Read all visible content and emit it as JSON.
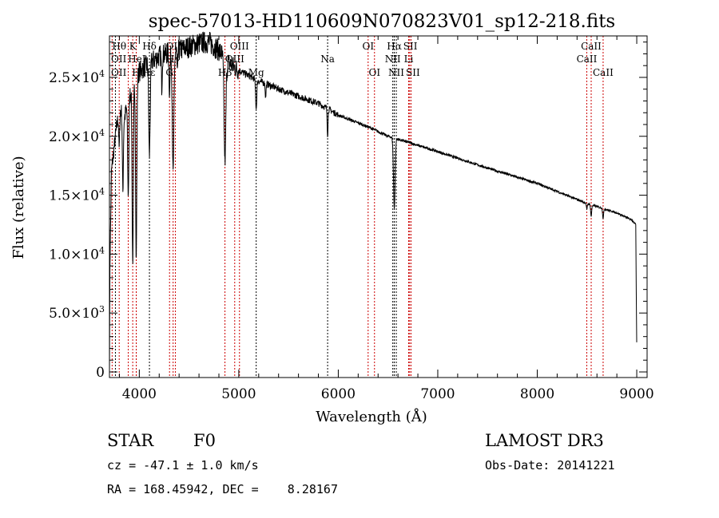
{
  "chart_data": {
    "type": "line",
    "title": "spec-57013-HD110609N070823V01_sp12-218.fits",
    "xlabel": "Wavelength (Å)",
    "ylabel": "Flux (relative)",
    "xlim": [
      3700,
      9104
    ],
    "ylim": [
      -475,
      28520
    ],
    "xticks": [
      4000,
      5000,
      6000,
      7000,
      8000,
      9000
    ],
    "xtick_labels": [
      "4000",
      "5000",
      "6000",
      "7000",
      "8000",
      "9000"
    ],
    "yticks": [
      0,
      5000,
      10000,
      15000,
      20000,
      25000
    ],
    "ytick_labels": [
      [
        "0",
        ""
      ],
      [
        "5.0×10",
        "3"
      ],
      [
        "1.0×10",
        "4"
      ],
      [
        "1.5×10",
        "4"
      ],
      [
        "2.0×10",
        "4"
      ],
      [
        "2.5×10",
        "4"
      ]
    ],
    "grid": false,
    "continuum": [
      [
        3700,
        0
      ],
      [
        3705,
        9000
      ],
      [
        3720,
        17000
      ],
      [
        3760,
        20000
      ],
      [
        3800,
        22500
      ],
      [
        3850,
        21500
      ],
      [
        3900,
        23500
      ],
      [
        4000,
        25500
      ],
      [
        4100,
        26200
      ],
      [
        4200,
        26800
      ],
      [
        4300,
        27100
      ],
      [
        4400,
        27300
      ],
      [
        4500,
        27600
      ],
      [
        4600,
        27900
      ],
      [
        4700,
        28000
      ],
      [
        4800,
        27300
      ],
      [
        4900,
        26200
      ],
      [
        5000,
        25600
      ],
      [
        5200,
        24700
      ],
      [
        5500,
        23700
      ],
      [
        5800,
        22800
      ],
      [
        6000,
        21800
      ],
      [
        6300,
        20800
      ],
      [
        6500,
        20000
      ],
      [
        6700,
        19500
      ],
      [
        7000,
        18700
      ],
      [
        7500,
        17300
      ],
      [
        8000,
        16000
      ],
      [
        8500,
        14300
      ],
      [
        8800,
        13500
      ],
      [
        8950,
        12900
      ],
      [
        8990,
        12500
      ],
      [
        8995,
        7000
      ],
      [
        9000,
        2500
      ]
    ],
    "absorption": [
      [
        3798,
        0.15,
        5
      ],
      [
        3835,
        0.3,
        5
      ],
      [
        3889,
        0.35,
        6
      ],
      [
        3934,
        0.62,
        6
      ],
      [
        3969,
        0.62,
        6
      ],
      [
        4102,
        0.3,
        7
      ],
      [
        4226,
        0.1,
        4
      ],
      [
        4304,
        0.12,
        5
      ],
      [
        4340,
        0.38,
        8
      ],
      [
        4383,
        0.08,
        4
      ],
      [
        4861,
        0.33,
        9
      ],
      [
        5175,
        0.1,
        6
      ],
      [
        5270,
        0.05,
        4
      ],
      [
        5893,
        0.1,
        4
      ],
      [
        6563,
        0.3,
        8
      ],
      [
        8498,
        0.04,
        4
      ],
      [
        8542,
        0.07,
        5
      ],
      [
        8662,
        0.06,
        5
      ]
    ],
    "lines": [
      {
        "w": 3727,
        "label": "OII",
        "row": 2,
        "color": "#cc0000"
      },
      {
        "w": 3798,
        "label": "Hθ",
        "row": 0,
        "color": "#cc0000"
      },
      {
        "w": 3760,
        "label": "OII",
        "row": 1,
        "color": "#000000"
      },
      {
        "w": 3889,
        "label": "HeI",
        "row": 1,
        "color": "#cc0000"
      },
      {
        "w": 3934,
        "label": "K",
        "row": 0,
        "color": "#cc0000"
      },
      {
        "w": 3969,
        "label": "H",
        "row": 2,
        "color": "#cc0000"
      },
      {
        "w": 3970,
        "label": "Hε",
        "row": 2,
        "color": "#cc0000"
      },
      {
        "w": 4102,
        "label": "Hδ",
        "row": 0,
        "color": "#000000"
      },
      {
        "w": 4304,
        "label": "G",
        "row": 2,
        "color": "#cc0000"
      },
      {
        "w": 4340,
        "label": "Hγ",
        "row": 1,
        "color": "#cc0000"
      },
      {
        "w": 4363,
        "label": "OIII",
        "row": 0,
        "color": "#cc0000"
      },
      {
        "w": 4861,
        "label": "Hβ",
        "row": 2,
        "color": "#cc0000"
      },
      {
        "w": 4959,
        "label": "OIII",
        "row": 1,
        "color": "#cc0000"
      },
      {
        "w": 5007,
        "label": "OIII",
        "row": 0,
        "color": "#cc0000"
      },
      {
        "w": 5175,
        "label": "Mg",
        "row": 2,
        "color": "#000000"
      },
      {
        "w": 5893,
        "label": "Na",
        "row": 1,
        "color": "#000000"
      },
      {
        "w": 6300,
        "label": "OI",
        "row": 0,
        "color": "#cc0000"
      },
      {
        "w": 6364,
        "label": "OI",
        "row": 2,
        "color": "#cc0000"
      },
      {
        "w": 6548,
        "label": "NII",
        "row": 1,
        "color": "#000000"
      },
      {
        "w": 6563,
        "label": "Hα",
        "row": 0,
        "color": "#000000"
      },
      {
        "w": 6583,
        "label": "NII",
        "row": 2,
        "color": "#000000"
      },
      {
        "w": 6707,
        "label": "Li",
        "row": 1,
        "color": "#cc0000"
      },
      {
        "w": 6717,
        "label": "SII",
        "row": 0,
        "color": "#cc0000"
      },
      {
        "w": 6731,
        "label": "SII",
        "row": 2,
        "color": "#cc0000"
      },
      {
        "w": 8498,
        "label": "CaII",
        "row": 1,
        "color": "#cc0000"
      },
      {
        "w": 8542,
        "label": "CaII",
        "row": 0,
        "color": "#cc0000"
      },
      {
        "w": 8662,
        "label": "CaII",
        "row": 2,
        "color": "#cc0000"
      }
    ]
  },
  "info": {
    "class": "STAR",
    "subclass": "F0",
    "survey": "LAMOST DR3",
    "cz": "cz = -47.1 ± 1.0 km/s",
    "obs_date": "Obs-Date: 20141221",
    "radec": "RA = 168.45942, DEC =    8.28167"
  }
}
